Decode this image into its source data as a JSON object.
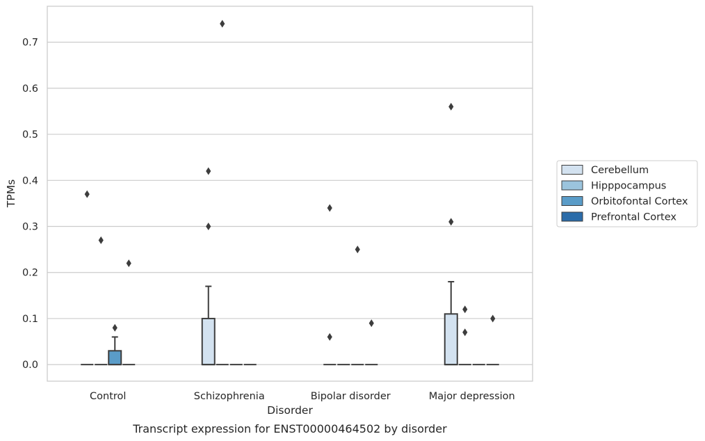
{
  "chart_data": {
    "type": "box",
    "caption": "Transcript expression for ENST00000464502 by disorder",
    "xlabel": "Disorder",
    "ylabel": "TPMs",
    "ylim": [
      -0.036,
      0.778
    ],
    "yticks": [
      0.0,
      0.1,
      0.2,
      0.3,
      0.4,
      0.5,
      0.6,
      0.7
    ],
    "ytick_labels": [
      "0.0",
      "0.1",
      "0.2",
      "0.3",
      "0.4",
      "0.5",
      "0.6",
      "0.7"
    ],
    "grid": true,
    "legend_position": "right",
    "categories": [
      "Control",
      "Schizophrenia",
      "Bipolar disorder",
      "Major depression"
    ],
    "series": [
      {
        "name": "Cerebellum",
        "color": "#d3e2f0",
        "boxes": [
          {
            "min": 0,
            "q1": 0,
            "median": 0,
            "q3": 0,
            "max": 0,
            "outliers": [
              0.37
            ]
          },
          {
            "min": 0,
            "q1": 0,
            "median": 0,
            "q3": 0.1,
            "max": 0.17,
            "outliers": [
              0.3,
              0.42
            ]
          },
          {
            "min": 0,
            "q1": 0,
            "median": 0,
            "q3": 0,
            "max": 0,
            "outliers": [
              0.06,
              0.34
            ]
          },
          {
            "min": 0,
            "q1": 0,
            "median": 0,
            "q3": 0.11,
            "max": 0.18,
            "outliers": [
              0.31,
              0.56
            ]
          }
        ]
      },
      {
        "name": "Hipppocampus",
        "color": "#9bc4dd",
        "boxes": [
          {
            "min": 0,
            "q1": 0,
            "median": 0,
            "q3": 0,
            "max": 0,
            "outliers": [
              0.27
            ]
          },
          {
            "min": 0,
            "q1": 0,
            "median": 0,
            "q3": 0,
            "max": 0,
            "outliers": [
              0.74
            ]
          },
          {
            "min": 0,
            "q1": 0,
            "median": 0,
            "q3": 0,
            "max": 0,
            "outliers": []
          },
          {
            "min": 0,
            "q1": 0,
            "median": 0,
            "q3": 0,
            "max": 0,
            "outliers": [
              0.12,
              0.07
            ]
          }
        ]
      },
      {
        "name": "Orbitofontal Cortex",
        "color": "#5a9cc8",
        "boxes": [
          {
            "min": 0,
            "q1": 0,
            "median": 0,
            "q3": 0.03,
            "max": 0.06,
            "outliers": [
              0.08
            ]
          },
          {
            "min": 0,
            "q1": 0,
            "median": 0,
            "q3": 0,
            "max": 0,
            "outliers": []
          },
          {
            "min": 0,
            "q1": 0,
            "median": 0,
            "q3": 0,
            "max": 0,
            "outliers": [
              0.25
            ]
          },
          {
            "min": 0,
            "q1": 0,
            "median": 0,
            "q3": 0,
            "max": 0,
            "outliers": []
          }
        ]
      },
      {
        "name": "Prefrontal Cortex",
        "color": "#2b6ca9",
        "boxes": [
          {
            "min": 0,
            "q1": 0,
            "median": 0,
            "q3": 0,
            "max": 0,
            "outliers": [
              0.22
            ]
          },
          {
            "min": 0,
            "q1": 0,
            "median": 0,
            "q3": 0,
            "max": 0,
            "outliers": []
          },
          {
            "min": 0,
            "q1": 0,
            "median": 0,
            "q3": 0,
            "max": 0,
            "outliers": [
              0.09
            ]
          },
          {
            "min": 0,
            "q1": 0,
            "median": 0,
            "q3": 0,
            "max": 0,
            "outliers": [
              0.1
            ]
          }
        ]
      }
    ]
  }
}
